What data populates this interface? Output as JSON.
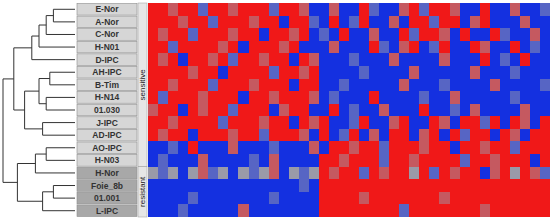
{
  "chart_data": {
    "type": "heatmap",
    "rows": [
      "E-Nor",
      "A-Nor",
      "C-Nor",
      "H-N01",
      "D-IPC",
      "AH-IPC",
      "B-Tim",
      "H-N14",
      "01.030",
      "J-IPC",
      "AD-IPC",
      "AO-IPC",
      "H-N03",
      "H-Nor",
      "Foie_8b",
      "01.001",
      "L-IPC"
    ],
    "groups": [
      {
        "label": "sensitive",
        "first": 0,
        "last": 12
      },
      {
        "label": "resistant",
        "first": 13,
        "last": 16
      }
    ],
    "cell_range": [
      -1,
      1
    ],
    "cells": [
      [
        1,
        1,
        0.5,
        1,
        1,
        -0.5,
        1,
        1,
        0.5,
        1,
        1,
        1,
        -0.5,
        1,
        1,
        0.5,
        -1,
        -1,
        0.5,
        -1,
        -1,
        1,
        -0.5,
        -1,
        -1,
        0.5,
        1,
        -0.5,
        1,
        1,
        0.5,
        -1,
        -1,
        1,
        -1,
        -1,
        0.5,
        -1,
        -1,
        -0.5
      ],
      [
        1,
        1,
        1,
        0.5,
        1,
        1,
        -0.5,
        1,
        1,
        1,
        0.5,
        1,
        1,
        -1,
        1,
        1,
        -0.5,
        -1,
        1,
        -1,
        -0.5,
        1,
        -1,
        -1,
        0.5,
        -1,
        1,
        1,
        -0.5,
        1,
        1,
        -1,
        0.5,
        1,
        -1,
        -1,
        -1,
        0.5,
        -1,
        -1
      ],
      [
        1,
        0.5,
        1,
        1,
        -0.5,
        1,
        1,
        1,
        0.5,
        1,
        1,
        -1,
        1,
        1,
        0.5,
        1,
        -1,
        -0.5,
        -1,
        1,
        -1,
        -1,
        0.5,
        -1,
        -1,
        1,
        -0.5,
        1,
        1,
        0.5,
        -1,
        1,
        -1,
        -1,
        1,
        -0.5,
        -1,
        -1,
        0.5,
        -1
      ],
      [
        1,
        1,
        -0.5,
        1,
        1,
        1,
        1,
        0.5,
        1,
        -1,
        1,
        1,
        1,
        0.5,
        1,
        -1,
        -1,
        -1,
        0.5,
        -1,
        -1,
        -1,
        1,
        -0.5,
        -1,
        0.5,
        1,
        -1,
        -0.5,
        1,
        -1,
        -1,
        1,
        0.5,
        -1,
        -1,
        1,
        -1,
        -0.5,
        -1
      ],
      [
        1,
        0.5,
        1,
        -1,
        1,
        1,
        0.5,
        1,
        -0.5,
        1,
        1,
        0.5,
        1,
        1,
        -1,
        1,
        0.5,
        -1,
        -1,
        -1,
        -0.5,
        -1,
        -1,
        -1,
        0.5,
        -1,
        -1,
        -1,
        -1,
        0.5,
        -1,
        -1,
        -1,
        1,
        -1,
        -0.5,
        -1,
        1,
        -1,
        -1
      ],
      [
        1,
        1,
        1,
        1,
        0.5,
        1,
        1,
        -1,
        1,
        1,
        1,
        1,
        -0.5,
        1,
        1,
        0.5,
        1,
        -1,
        -1,
        -1,
        -1,
        -0.5,
        -1,
        -1,
        -1,
        -1,
        0.5,
        -1,
        -1,
        -1,
        -1,
        -1,
        0.5,
        -1,
        -1,
        -1,
        -0.5,
        -1,
        -1,
        -1
      ],
      [
        1,
        1,
        0.5,
        1,
        1,
        1,
        -0.5,
        1,
        1,
        1,
        0.5,
        1,
        1,
        1,
        -1,
        1,
        1,
        -1,
        -1,
        -0.5,
        -1,
        -1,
        -1,
        -1,
        -1,
        0.5,
        -1,
        -1,
        -1,
        -0.5,
        -1,
        -1,
        -1,
        -1,
        0.5,
        -1,
        -1,
        -1,
        -1,
        -0.5
      ],
      [
        1,
        -0.5,
        1,
        1,
        1,
        0.5,
        1,
        1,
        1,
        -1,
        1,
        1,
        0.5,
        1,
        1,
        1,
        0.5,
        -1,
        -0.5,
        -1,
        -1,
        -1,
        1,
        -1,
        -1,
        -1,
        -1,
        -0.5,
        -1,
        -1,
        0.5,
        -1,
        -1,
        -1,
        -1,
        -1,
        -0.5,
        -1,
        -1,
        -1
      ],
      [
        0.5,
        1,
        1,
        -1,
        1,
        0.5,
        1,
        1,
        -0.5,
        1,
        1,
        1,
        -1,
        0.5,
        1,
        1,
        -1,
        -1,
        1,
        -1,
        -0.5,
        -1,
        -1,
        0.5,
        -1,
        -1,
        -1,
        1,
        -1,
        -1,
        -0.5,
        -1,
        0.5,
        -1,
        -1,
        -1,
        -1,
        0.5,
        -1,
        -1
      ],
      [
        1,
        1,
        0.5,
        1,
        1,
        1,
        1,
        -0.5,
        1,
        1,
        1,
        0.5,
        1,
        1,
        -1,
        1,
        0.5,
        1,
        -1,
        -1,
        -0.5,
        1,
        -1,
        -1,
        0.5,
        1,
        -1,
        -1,
        1,
        0.5,
        -1,
        1,
        1,
        -0.5,
        1,
        -1,
        1,
        0.5,
        -1,
        1
      ],
      [
        1,
        0.5,
        1,
        1,
        -1,
        1,
        1,
        1,
        0.5,
        1,
        1,
        -0.5,
        1,
        1,
        1,
        0.5,
        -1,
        1,
        -1,
        -0.5,
        1,
        -1,
        0.5,
        -1,
        1,
        1,
        -1,
        0.5,
        1,
        -1,
        1,
        -0.5,
        1,
        1,
        -1,
        1,
        0.5,
        -1,
        1,
        1
      ],
      [
        -1,
        -1,
        -0.5,
        -1,
        1,
        -1,
        -1,
        -1,
        0.5,
        -1,
        -1,
        -1,
        -0.5,
        -1,
        -1,
        -1,
        0.5,
        -1,
        1,
        1,
        0.5,
        1,
        1,
        -0.5,
        1,
        1,
        1,
        0.5,
        1,
        1,
        -1,
        1,
        1,
        0.5,
        1,
        1,
        -0.5,
        1,
        1,
        1
      ],
      [
        -1,
        -0.5,
        -1,
        -1,
        -1,
        0.5,
        -1,
        -1,
        -1,
        -1,
        -0.5,
        -1,
        0.5,
        -1,
        -1,
        -1,
        -1,
        1,
        1,
        0.5,
        1,
        1,
        1,
        -0.5,
        1,
        1,
        0.5,
        1,
        1,
        1,
        1,
        -0.5,
        1,
        1,
        0.5,
        1,
        1,
        1,
        -1,
        1
      ],
      [
        0,
        -0.5,
        0,
        -1,
        0,
        0.5,
        -0.5,
        0,
        -1,
        0,
        -0.5,
        0,
        0.5,
        -1,
        0,
        -0.5,
        0,
        1,
        0.5,
        1,
        1,
        -0.5,
        1,
        0.5,
        1,
        1,
        0,
        1,
        -0.5,
        1,
        0.5,
        1,
        1,
        -1,
        0.5,
        1,
        0,
        1,
        0.5,
        -0.5
      ],
      [
        -1,
        -1,
        -1,
        -1,
        -1,
        -1,
        -1,
        -1,
        -1,
        -1,
        -1,
        -1,
        -1,
        -1,
        -1,
        -0.5,
        -1,
        1,
        1,
        1,
        1,
        1,
        1,
        1,
        1,
        1,
        1,
        1,
        1,
        1,
        1,
        1,
        1,
        1,
        1,
        1,
        1,
        1,
        1,
        1
      ],
      [
        -1,
        -1,
        -1,
        -1,
        -0.5,
        -1,
        -1,
        -1,
        -1,
        -1,
        -1,
        -1,
        -0.5,
        -1,
        -1,
        -1,
        -1,
        1,
        1,
        1,
        1,
        0.5,
        1,
        1,
        1,
        1,
        1,
        1,
        1,
        0.5,
        1,
        1,
        1,
        1,
        1,
        1,
        1,
        1,
        1,
        1
      ],
      [
        -1,
        -1,
        -1,
        -0.5,
        -1,
        -1,
        -1,
        -1,
        -1,
        0.5,
        -1,
        -1,
        -1,
        -1,
        -1,
        -1,
        -1,
        1,
        1,
        1,
        1,
        1,
        1,
        1,
        1,
        -0.5,
        1,
        1,
        1,
        1,
        1,
        1,
        1,
        0.5,
        1,
        1,
        1,
        1,
        1,
        1
      ]
    ],
    "dendrogram": {
      "height_range": [
        0,
        1
      ],
      "tree": {
        "height": 1.0,
        "children": [
          {
            "height": 0.85,
            "children": [
              {
                "height": 0.6,
                "children": [
                  {
                    "height": 0.5,
                    "children": [
                      {
                        "height": 0.4,
                        "children": [
                          {
                            "height": 0.3,
                            "children": [
                              0,
                              1
                            ]
                          },
                          2
                        ]
                      },
                      3
                    ]
                  },
                  4
                ]
              },
              {
                "height": 0.7,
                "children": [
                  {
                    "height": 0.5,
                    "children": [
                      {
                        "height": 0.35,
                        "children": [
                          5,
                          6
                        ]
                      },
                      {
                        "height": 0.4,
                        "children": [
                          7,
                          8
                        ]
                      }
                    ]
                  },
                  {
                    "height": 0.45,
                    "children": [
                      9,
                      10
                    ]
                  }
                ]
              }
            ]
          },
          {
            "height": 0.8,
            "children": [
              {
                "height": 0.55,
                "children": [
                  {
                    "height": 0.4,
                    "children": [
                      11,
                      12
                    ]
                  },
                  13
                ]
              },
              {
                "height": 0.45,
                "children": [
                  {
                    "height": 0.3,
                    "children": [
                      14,
                      15
                    ]
                  },
                  16
                ]
              }
            ]
          }
        ]
      }
    }
  }
}
